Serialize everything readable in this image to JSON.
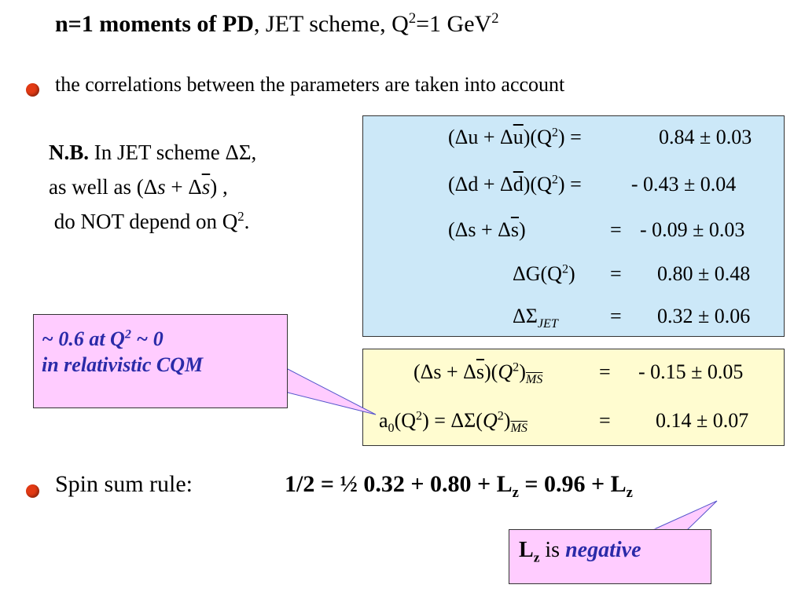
{
  "title": {
    "bold": "n=1 moments of PD",
    "rest": ",  JET scheme,   Q",
    "sup1": "2",
    "rest2": "=1 GeV",
    "sup2": "2"
  },
  "bullet_line": "the correlations between the parameters are taken into account",
  "nb_note": {
    "bold": "N.B.",
    "line1": " In JET scheme ΔΣ,",
    "line2a": "as well as  (Δ",
    "s1": "s",
    "line2b": " + Δ",
    "s2": "s",
    "line2c": ")  ,",
    "line3": "do NOT depend on Q",
    "line3_sup": "2",
    "line3_end": "."
  },
  "blue_equations": [
    {
      "lhs_a": "(Δu + Δ",
      "bar": "u",
      "lhs_b": ")(Q",
      "sup": "2",
      "lhs_c": ") = ",
      "value": "0.84 ± 0.03"
    },
    {
      "lhs_a": "(Δd + Δ",
      "bar": "d",
      "lhs_b": ")(Q",
      "sup": "2",
      "lhs_c": ") = ",
      "value": "- 0.43 ± 0.04"
    },
    {
      "lhs_a": "(Δs + Δ",
      "bar": "s",
      "lhs_b": ")",
      "eq": "=",
      "value": "- 0.09 ± 0.03"
    },
    {
      "lhs_a": "ΔG(Q",
      "sup": "2",
      "lhs_b": ")",
      "eq": "=",
      "value": "0.80 ± 0.48"
    },
    {
      "lhs_a": "ΔΣ",
      "sub": "JET",
      "eq": "=",
      "value": "0.32 ± 0.06"
    }
  ],
  "yellow_equations": [
    {
      "lhs_a": "(Δs + Δ",
      "bar": "s",
      "lhs_b": ")(",
      "q": "Q",
      "sup": "2",
      "lhs_c": ")",
      "sub": "MS",
      "eq": "=",
      "value": "- 0.15 ± 0.05"
    },
    {
      "lhs_a": "a",
      "sub0": "0",
      "lhs_b": "(Q",
      "sup": "2",
      "lhs_c": ") = ΔΣ(",
      "q": "Q",
      "sup2": "2",
      "lhs_d": ")",
      "sub": "MS",
      "eq": "=",
      "value": "0.14 ± 0.07"
    }
  ],
  "callout_cqm": {
    "line1a": "~ 0.6  at  Q",
    "line1_sup": "2",
    "line1b": " ~ 0",
    "line2": "in relativistic CQM"
  },
  "spin_sum": {
    "label": "Spin sum rule:",
    "eq_a": "1/2 = ½ 0.32 + 0.80 + L",
    "eq_sub1": "z",
    "eq_b": " = 0.96 + L",
    "eq_sub2": "z"
  },
  "callout_lz": {
    "l": "L",
    "sub": "z",
    "is": " is ",
    "neg": "negative"
  },
  "colors": {
    "blue_box": "#cce8f8",
    "yellow_box": "#fffcd0",
    "callout": "#ffccff",
    "callout_text": "#2a2aa8",
    "bullet": "#e23a14"
  }
}
